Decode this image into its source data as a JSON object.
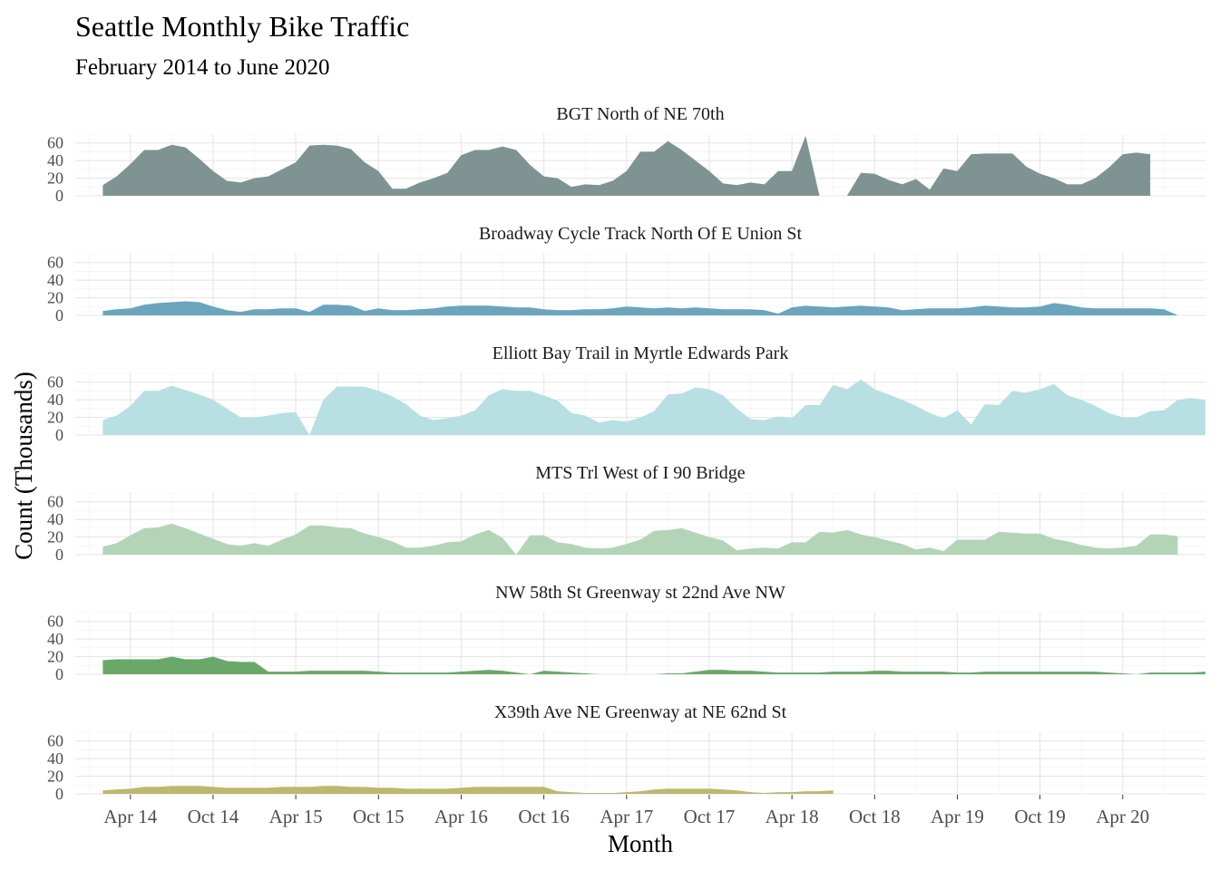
{
  "chart_data": {
    "type": "area",
    "title": "Seattle Monthly Bike Traffic",
    "subtitle": "February 2014 to June 2020",
    "xlabel": "Month",
    "ylabel": "Count (Thousands)",
    "yticks": [
      "0",
      "20",
      "40",
      "60"
    ],
    "ylim": [
      0,
      70
    ],
    "xlim": [
      "2013-12",
      "2020-10"
    ],
    "xticks": [
      {
        "date": "2014-04",
        "label": "Apr 14"
      },
      {
        "date": "2014-10",
        "label": "Oct 14"
      },
      {
        "date": "2015-04",
        "label": "Apr 15"
      },
      {
        "date": "2015-10",
        "label": "Oct 15"
      },
      {
        "date": "2016-04",
        "label": "Apr 16"
      },
      {
        "date": "2016-10",
        "label": "Oct 16"
      },
      {
        "date": "2017-04",
        "label": "Apr 17"
      },
      {
        "date": "2017-10",
        "label": "Oct 17"
      },
      {
        "date": "2018-04",
        "label": "Apr 18"
      },
      {
        "date": "2018-10",
        "label": "Oct 18"
      },
      {
        "date": "2019-04",
        "label": "Apr 19"
      },
      {
        "date": "2019-10",
        "label": "Oct 19"
      },
      {
        "date": "2020-04",
        "label": "Apr 20"
      }
    ],
    "start_month": "2014-02",
    "series": [
      {
        "name": "BGT North of NE 70th",
        "color": "#7e9392",
        "values": [
          12,
          22,
          36,
          52,
          52,
          58,
          55,
          42,
          28,
          17,
          15,
          20,
          22,
          30,
          38,
          57,
          58,
          57,
          53,
          38,
          28,
          8,
          8,
          15,
          20,
          26,
          46,
          52,
          52,
          56,
          52,
          35,
          22,
          20,
          10,
          13,
          12,
          17,
          28,
          50,
          50,
          62,
          52,
          40,
          28,
          14,
          12,
          15,
          13,
          28,
          28,
          68,
          0,
          null,
          0,
          26,
          25,
          18,
          13,
          19,
          7,
          31,
          28,
          47,
          48,
          48,
          48,
          33,
          25,
          20,
          13,
          13,
          20,
          32,
          47,
          49,
          47
        ]
      },
      {
        "name": "Broadway Cycle Track North Of E Union St",
        "color": "#6ba4bd",
        "values": [
          5,
          7,
          8,
          12,
          14,
          15,
          16,
          15,
          10,
          6,
          4,
          7,
          7,
          8,
          8,
          4,
          12,
          12,
          11,
          5,
          8,
          6,
          6,
          7,
          8,
          10,
          11,
          11,
          11,
          10,
          9,
          9,
          7,
          6,
          6,
          7,
          7,
          8,
          10,
          9,
          8,
          9,
          8,
          9,
          8,
          7,
          7,
          7,
          6,
          2,
          9,
          11,
          10,
          9,
          10,
          11,
          10,
          9,
          6,
          7,
          8,
          8,
          8,
          9,
          11,
          10,
          9,
          9,
          10,
          14,
          12,
          9,
          8,
          8,
          8,
          8,
          8,
          7,
          0
        ]
      },
      {
        "name": "Elliott Bay Trail in Myrtle Edwards Park",
        "color": "#b8dfe1",
        "values": [
          17,
          22,
          33,
          50,
          50,
          56,
          51,
          46,
          40,
          30,
          20,
          20,
          22,
          25,
          26,
          0,
          40,
          55,
          55,
          55,
          50,
          44,
          35,
          22,
          17,
          19,
          22,
          28,
          45,
          52,
          50,
          50,
          45,
          39,
          25,
          22,
          14,
          17,
          15,
          20,
          27,
          46,
          47,
          54,
          52,
          45,
          30,
          18,
          17,
          21,
          19,
          34,
          34,
          57,
          52,
          63,
          52,
          46,
          40,
          33,
          25,
          19,
          28,
          12,
          35,
          34,
          50,
          48,
          52,
          58,
          45,
          40,
          33,
          25,
          20,
          20,
          27,
          28,
          40,
          42,
          40
        ]
      },
      {
        "name": "MTS Trl West of I 90 Bridge",
        "color": "#b4d4b8",
        "values": [
          9,
          13,
          22,
          30,
          31,
          35,
          30,
          24,
          18,
          12,
          10,
          13,
          10,
          17,
          23,
          33,
          33,
          31,
          30,
          24,
          20,
          15,
          8,
          8,
          10,
          14,
          15,
          23,
          28,
          19,
          0,
          22,
          22,
          14,
          12,
          8,
          7,
          8,
          12,
          17,
          27,
          28,
          30,
          25,
          20,
          16,
          5,
          7,
          8,
          7,
          14,
          14,
          26,
          25,
          28,
          23,
          20,
          16,
          12,
          6,
          8,
          4,
          17,
          17,
          17,
          26,
          25,
          24,
          24,
          18,
          15,
          11,
          8,
          7,
          8,
          10,
          23,
          23,
          21
        ]
      },
      {
        "name": "NW 58th St Greenway st 22nd Ave NW",
        "color": "#6aa86a",
        "values": [
          16,
          17,
          17,
          17,
          17,
          20,
          17,
          17,
          20,
          15,
          14,
          14,
          3,
          3,
          3,
          4,
          4,
          4,
          4,
          4,
          3,
          2,
          2,
          2,
          2,
          2,
          3,
          4,
          5,
          4,
          2,
          0,
          4,
          3,
          2,
          1,
          0,
          null,
          null,
          null,
          0,
          1,
          1,
          3,
          5,
          5,
          4,
          4,
          3,
          2,
          2,
          2,
          2,
          3,
          3,
          3,
          4,
          4,
          3,
          3,
          3,
          3,
          2,
          2,
          3,
          3,
          3,
          3,
          3,
          3,
          3,
          3,
          3,
          2,
          1,
          0,
          2,
          2,
          2,
          2,
          3
        ]
      },
      {
        "name": "X39th Ave NE Greenway at NE 62nd St",
        "color": "#bcb86e",
        "values": [
          4,
          5,
          6,
          8,
          8,
          9,
          9,
          9,
          8,
          7,
          7,
          7,
          7,
          8,
          8,
          8,
          9,
          9,
          8,
          8,
          7,
          7,
          6,
          6,
          6,
          6,
          7,
          8,
          8,
          8,
          8,
          8,
          8,
          3,
          2,
          1,
          1,
          1,
          2,
          3,
          5,
          6,
          6,
          6,
          6,
          5,
          4,
          2,
          1,
          2,
          2,
          3,
          3,
          4
        ]
      }
    ]
  }
}
